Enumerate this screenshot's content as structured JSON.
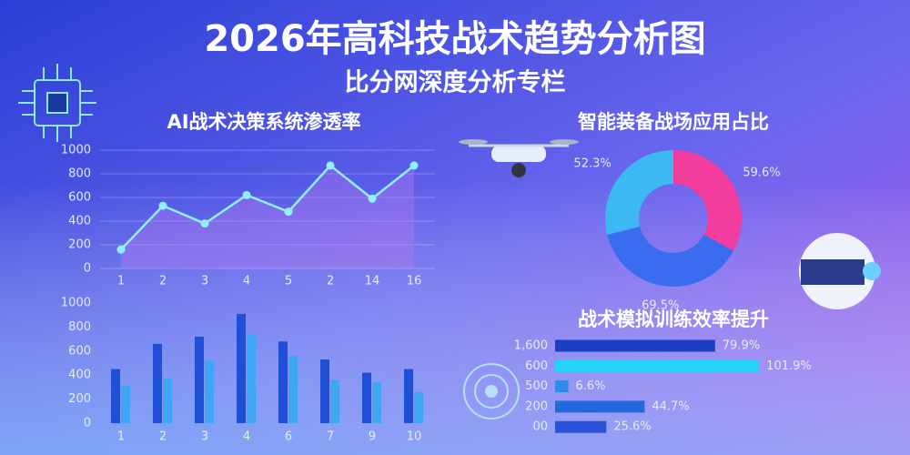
{
  "header": {
    "title": "2026年高科技战术趋势分析图",
    "subtitle": "比分网深度分析专栏"
  },
  "chart_data": [
    {
      "type": "line",
      "title": "AI战术决策系统渗透率",
      "categories": [
        "1",
        "2",
        "3",
        "4",
        "5",
        "2",
        "14",
        "16"
      ],
      "values": [
        160,
        530,
        380,
        620,
        480,
        870,
        590,
        870
      ],
      "color": "#8ff0ff",
      "area_color": "#c07cf0",
      "ylim": [
        0,
        1000
      ],
      "yticks": [
        0,
        200,
        400,
        600,
        800,
        1000
      ],
      "grid": true
    },
    {
      "type": "bar",
      "categories": [
        "1",
        "2",
        "3",
        "4",
        "6",
        "7",
        "9",
        "10"
      ],
      "series": [
        {
          "color": "#1f4fd6",
          "values": [
            450,
            660,
            720,
            910,
            680,
            530,
            420,
            450
          ]
        },
        {
          "color": "#3ea6f2",
          "values": [
            310,
            370,
            520,
            740,
            560,
            360,
            340,
            260
          ]
        }
      ],
      "ylim": [
        0,
        1000
      ],
      "yticks": [
        0,
        200,
        400,
        600,
        800,
        1000
      ],
      "grid": false
    },
    {
      "type": "pie",
      "title": "智能装备战场应用占比",
      "donut": true,
      "values": [
        59.6,
        69.5,
        52.3
      ],
      "value_labels": [
        "59.6%",
        "69.5%",
        "52.3%"
      ],
      "colors": [
        "#f23c9e",
        "#3a6cf0",
        "#3cb8f2"
      ]
    },
    {
      "type": "barh",
      "title": "战术模拟训练效率提升",
      "categories": [
        "1,600",
        "600",
        "500",
        "200",
        "00"
      ],
      "values": [
        79.9,
        101.9,
        6.6,
        44.7,
        25.6
      ],
      "value_labels": [
        "79.9%",
        "101.9%",
        "6.6%",
        "44.7%",
        "25.6%"
      ],
      "colors": [
        "#1b3fc4",
        "#22d4f5",
        "#2f8ae8",
        "#2566dc",
        "#2a52d8"
      ]
    }
  ]
}
